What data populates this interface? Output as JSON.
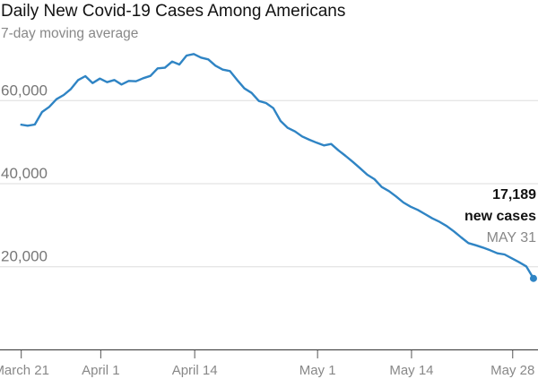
{
  "chart_data": {
    "type": "line",
    "title": "Daily New Covid-19 Cases Among Americans",
    "subtitle": "7-day moving average",
    "xlabel": "",
    "ylabel": "",
    "start_date": "March 21",
    "end_date": "May 31",
    "ylim": [
      0,
      75000
    ],
    "grid": true,
    "yticks": [
      {
        "value": 20000,
        "label": "20,000"
      },
      {
        "value": 40000,
        "label": "40,000"
      },
      {
        "value": 60000,
        "label": "60,000"
      }
    ],
    "xticks": [
      {
        "day": 0,
        "label": "March 21"
      },
      {
        "day": 11,
        "label": "April 1"
      },
      {
        "day": 24,
        "label": "April 14"
      },
      {
        "day": 41,
        "label": "May 1"
      },
      {
        "day": 54,
        "label": "May 14"
      },
      {
        "day": 68,
        "label": "May 28"
      }
    ],
    "series": [
      {
        "name": "7-day moving average",
        "color": "#2f84c4",
        "values": [
          54240,
          53960,
          54240,
          57260,
          58490,
          60350,
          61360,
          62800,
          64960,
          65890,
          64230,
          65310,
          64450,
          64960,
          63880,
          64740,
          64670,
          65390,
          65960,
          67770,
          67910,
          69410,
          68690,
          70850,
          71210,
          70350,
          69920,
          68410,
          67460,
          67120,
          64960,
          62930,
          61860,
          59920,
          59420,
          58190,
          55100,
          53440,
          52580,
          51370,
          50570,
          49860,
          49210,
          49560,
          48050,
          46690,
          45250,
          43740,
          42160,
          41080,
          39200,
          38210,
          36920,
          35470,
          34460,
          33680,
          32670,
          31660,
          30800,
          29800,
          28510,
          27060,
          25700,
          25180,
          24620,
          23980,
          23240,
          22960,
          22030,
          21090,
          20090,
          17189
        ]
      }
    ],
    "annotation": {
      "value": "17,189",
      "label": "new cases",
      "date": "MAY 31"
    }
  }
}
